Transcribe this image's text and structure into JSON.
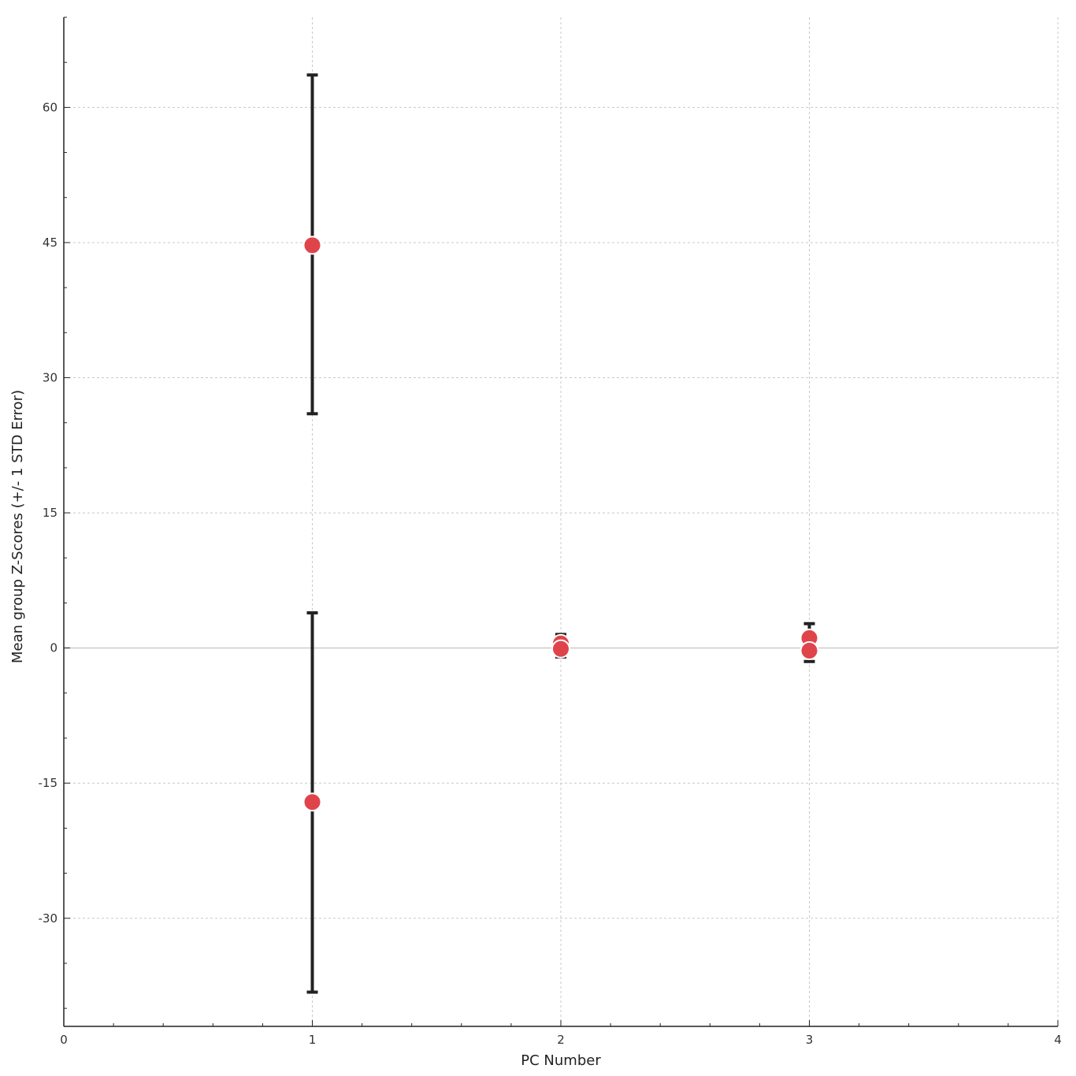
{
  "chart_data": {
    "type": "scatter",
    "title": "",
    "xlabel": "PC Number",
    "ylabel": "Mean group Z-Scores (+/- 1 STD Error)",
    "xlim": [
      0,
      4
    ],
    "ylim": [
      -42,
      70
    ],
    "xticks": [
      0,
      1,
      2,
      3,
      4
    ],
    "yticks": [
      -30,
      -15,
      0,
      15,
      30,
      45,
      60
    ],
    "grid": true,
    "zero_line": true,
    "error_bars": "+/- 1 STD Error",
    "colors": {
      "marker": "#e0444b",
      "error_bar": "#222222",
      "grid": "#c8c8c8",
      "axis": "#222222"
    },
    "points": [
      {
        "x": 1,
        "y": 44.7,
        "err_low": 26.0,
        "err_high": 63.6
      },
      {
        "x": 1,
        "y": -17.1,
        "err_low": -38.2,
        "err_high": 3.9
      },
      {
        "x": 2,
        "y": 0.5,
        "err_low": -0.5,
        "err_high": 1.5
      },
      {
        "x": 2,
        "y": -0.1,
        "err_low": -1.0,
        "err_high": 0.8
      },
      {
        "x": 3,
        "y": 1.1,
        "err_low": -0.5,
        "err_high": 2.7
      },
      {
        "x": 3,
        "y": -0.3,
        "err_low": -1.5,
        "err_high": 1.0
      }
    ]
  }
}
